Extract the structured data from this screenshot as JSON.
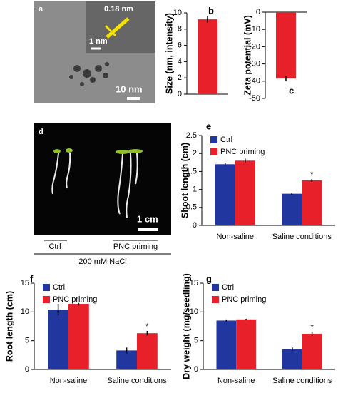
{
  "panel_a": {
    "label": "a",
    "lattice": "0.18 nm",
    "inset_scale": "1 nm",
    "scale": "10 nm"
  },
  "panel_d": {
    "label": "d",
    "scale": "1 cm",
    "groups": [
      "Ctrl",
      "PNC priming"
    ],
    "condition": "200 mM NaCl"
  },
  "chart_data": [
    {
      "type": "bar",
      "panel": "b",
      "ylabel": "Size (nm, intensity)",
      "categories": [
        null
      ],
      "series": [
        {
          "color": "#e8202a",
          "values": [
            9.2
          ],
          "errors": [
            0.4
          ]
        }
      ],
      "ylim": [
        0,
        10
      ],
      "yticks": [
        0,
        2,
        4,
        6,
        8,
        10
      ]
    },
    {
      "type": "bar",
      "panel": "c",
      "ylabel": "Zeta potential (mV)",
      "categories": [
        null
      ],
      "series": [
        {
          "color": "#e8202a",
          "values": [
            -38.5
          ],
          "errors": [
            1.5
          ]
        }
      ],
      "ylim": [
        -50,
        0
      ],
      "yticks": [
        0,
        -10,
        -20,
        -30,
        -40,
        -50
      ]
    },
    {
      "type": "bar",
      "panel": "e",
      "ylabel": "Shoot length (cm)",
      "categories": [
        "Non-saline",
        "Saline conditions"
      ],
      "series": [
        {
          "name": "Ctrl",
          "color": "#2236a0",
          "values": [
            1.7,
            0.88
          ],
          "errors": [
            0.04,
            0.03
          ],
          "markers": [
            null,
            null
          ]
        },
        {
          "name": "PNC priming",
          "color": "#e8202a",
          "values": [
            1.8,
            1.25
          ],
          "errors": [
            0.06,
            0.04
          ],
          "markers": [
            null,
            "*"
          ]
        }
      ],
      "ylim": [
        0,
        2.5
      ],
      "yticks": [
        0,
        0.5,
        1,
        1.5,
        2,
        2.5
      ]
    },
    {
      "type": "bar",
      "panel": "f",
      "ylabel": "Root length (cm)",
      "categories": [
        "Non-saline",
        "Saline conditions"
      ],
      "series": [
        {
          "name": "Ctrl",
          "color": "#2236a0",
          "values": [
            10.4,
            3.3
          ],
          "errors": [
            1.0,
            0.5
          ],
          "markers": [
            null,
            null
          ]
        },
        {
          "name": "PNC priming",
          "color": "#e8202a",
          "values": [
            11.4,
            6.3
          ],
          "errors": [
            0.15,
            0.4
          ],
          "markers": [
            null,
            "*"
          ]
        }
      ],
      "ylim": [
        0,
        15
      ],
      "yticks": [
        0,
        5,
        10,
        15
      ]
    },
    {
      "type": "bar",
      "panel": "g",
      "ylabel": "Dry weight (mg/seedling)",
      "categories": [
        "Non-saline",
        "Saline conditions"
      ],
      "series": [
        {
          "name": "Ctrl",
          "color": "#2236a0",
          "values": [
            8.5,
            3.5
          ],
          "errors": [
            0.2,
            0.3
          ],
          "markers": [
            null,
            null
          ]
        },
        {
          "name": "PNC priming",
          "color": "#e8202a",
          "values": [
            8.7,
            6.2
          ],
          "errors": [
            0.1,
            0.3
          ],
          "markers": [
            null,
            "*"
          ]
        }
      ],
      "ylim": [
        0,
        15
      ],
      "yticks": [
        0,
        5,
        10,
        15
      ]
    }
  ]
}
